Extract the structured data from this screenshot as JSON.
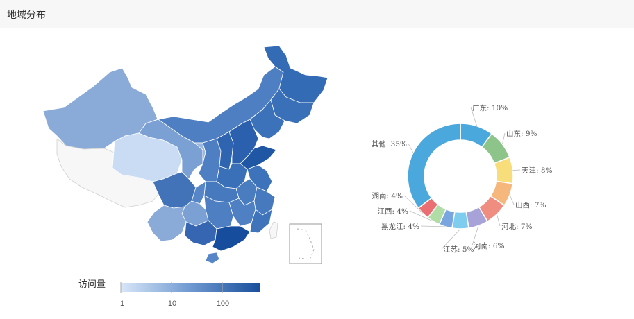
{
  "header": {
    "title": "地域分布"
  },
  "legend": {
    "title": "访问量",
    "ticks": [
      "1",
      "10",
      "100"
    ]
  },
  "colors": {
    "scale_low": "#d4e4f7",
    "scale_mid": "#5b8ccc",
    "scale_high": "#1a4f9c",
    "no_data": "#f7f7f7",
    "border": "#ffffff"
  },
  "chart_data": [
    {
      "type": "choropleth-map",
      "region": "China",
      "scale": "log",
      "legend_title": "访问量",
      "legend_ticks": [
        "1",
        "10",
        "100"
      ]
    },
    {
      "type": "pie",
      "style": "donut",
      "unit": "%",
      "slices": [
        {
          "name": "广东",
          "value": 10,
          "color": "#4aa8dd"
        },
        {
          "name": "山东",
          "value": 9,
          "color": "#8dc489"
        },
        {
          "name": "天津",
          "value": 8,
          "color": "#f8dd7b"
        },
        {
          "name": "山西",
          "value": 7,
          "color": "#f5b77c"
        },
        {
          "name": "河北",
          "value": 7,
          "color": "#ee8d80"
        },
        {
          "name": "河南",
          "value": 6,
          "color": "#a7a3d8"
        },
        {
          "name": "江苏",
          "value": 5,
          "color": "#7fcdee"
        },
        {
          "name": "黑龙江",
          "value": 4,
          "color": "#7aa6e0"
        },
        {
          "name": "江西",
          "value": 4,
          "color": "#b0dca6"
        },
        {
          "name": "湖南",
          "value": 4,
          "color": "#ea6f72"
        },
        {
          "name": "其他",
          "value": 35,
          "color": "#4aa8dd"
        }
      ]
    }
  ]
}
